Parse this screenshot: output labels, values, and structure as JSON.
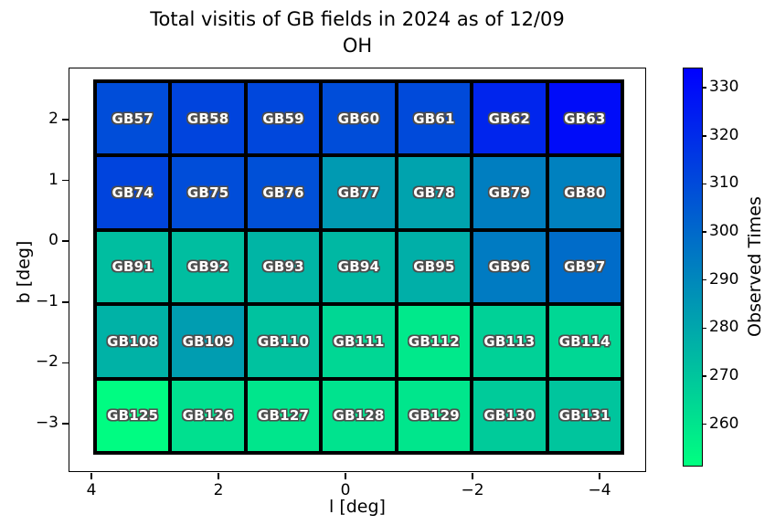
{
  "title": {
    "line1": "Total visitis of GB fields in 2024 as of 12/09",
    "line2": "OH"
  },
  "axes": {
    "xlabel": "l [deg]",
    "ylabel": "b [deg]",
    "x_tick_labels": [
      "4",
      "2",
      "0",
      "−2",
      "−4"
    ],
    "y_tick_labels": [
      "2",
      "1",
      "0",
      "−1",
      "−2",
      "−3"
    ]
  },
  "colorbar": {
    "label": "Observed Times",
    "tick_labels": [
      "330",
      "320",
      "310",
      "300",
      "290",
      "280",
      "270",
      "260"
    ],
    "vmin": 251,
    "vmax": 334,
    "color_low": "#00ff80",
    "color_high": "#0000ff",
    "colormap": "winter_r"
  },
  "chart_data": {
    "type": "heatmap",
    "title": "Total visitis of GB fields in 2024 as of 12/09",
    "subtitle": "OH",
    "xlabel": "l [deg]",
    "ylabel": "b [deg]",
    "colorbar_label": "Observed Times",
    "colormap": "winter_r",
    "vmin": 251,
    "vmax": 334,
    "xlim": [
      4.4,
      -4.4
    ],
    "ylim": [
      -3.5,
      2.65
    ],
    "x_ticks": [
      4,
      2,
      0,
      -2,
      -4
    ],
    "y_ticks": [
      2,
      1,
      0,
      -1,
      -2,
      -3
    ],
    "colorbar_ticks": [
      330,
      320,
      310,
      300,
      290,
      280,
      270,
      260
    ],
    "legend": "none",
    "grid_lines": "black cell borders",
    "rows": [
      {
        "b_center": 2.0,
        "fields": [
          "GB57",
          "GB58",
          "GB59",
          "GB60",
          "GB61",
          "GB62",
          "GB63"
        ],
        "values": [
          309,
          312,
          311,
          309,
          310,
          322,
          330
        ]
      },
      {
        "b_center": 0.8,
        "fields": [
          "GB74",
          "GB75",
          "GB76",
          "GB77",
          "GB78",
          "GB79",
          "GB80"
        ],
        "values": [
          312,
          309,
          308,
          284,
          281,
          293,
          292
        ]
      },
      {
        "b_center": -0.4,
        "fields": [
          "GB91",
          "GB92",
          "GB93",
          "GB94",
          "GB95",
          "GB96",
          "GB97"
        ],
        "values": [
          272,
          272,
          275,
          274,
          277,
          294,
          299
        ]
      },
      {
        "b_center": -1.6,
        "fields": [
          "GB108",
          "GB109",
          "GB110",
          "GB111",
          "GB112",
          "GB113",
          "GB114"
        ],
        "values": [
          276,
          283,
          271,
          264,
          258,
          266,
          264
        ]
      },
      {
        "b_center": -2.8,
        "fields": [
          "GB125",
          "GB126",
          "GB127",
          "GB128",
          "GB129",
          "GB130",
          "GB131"
        ],
        "values": [
          252,
          261,
          259,
          260,
          259,
          268,
          270
        ]
      }
    ]
  }
}
